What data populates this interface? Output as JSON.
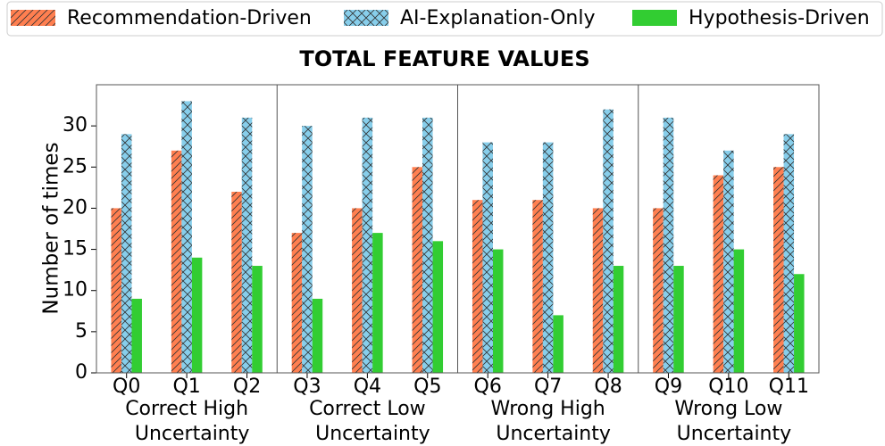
{
  "chart_data": {
    "type": "grouped_bar",
    "title": "TOTAL FEATURE VALUES",
    "y_label": "Number of times",
    "categories": [
      "Q0",
      "Q1",
      "Q2",
      "Q3",
      "Q4",
      "Q5",
      "Q6",
      "Q7",
      "Q8",
      "Q9",
      "Q10",
      "Q11"
    ],
    "groups": [
      [
        "Correct High",
        "Uncertainty"
      ],
      [
        "Correct Low",
        "Uncertainty"
      ],
      [
        "Wrong High",
        "Uncertainty"
      ],
      [
        "Wrong Low",
        "Uncertainty"
      ]
    ],
    "series": [
      {
        "name": "Recommendation-Driven",
        "color": "#ff7f50",
        "hatch": "diagonal",
        "values": [
          20,
          27,
          22,
          17,
          20,
          25,
          21,
          21,
          20,
          20,
          24,
          25
        ]
      },
      {
        "name": "AI-Explanation-Only",
        "color": "#87ceeb",
        "hatch": "cross",
        "values": [
          29,
          33,
          31,
          30,
          31,
          31,
          28,
          28,
          32,
          31,
          27,
          29
        ]
      },
      {
        "name": "Hypothesis-Driven",
        "color": "#32cd32",
        "hatch": "none",
        "values": [
          9,
          14,
          13,
          9,
          17,
          16,
          15,
          7,
          13,
          13,
          15,
          12
        ]
      }
    ],
    "ylim": [
      0,
      35
    ],
    "yticks": [
      0,
      5,
      10,
      15,
      20,
      25,
      30
    ],
    "legend": "top"
  }
}
